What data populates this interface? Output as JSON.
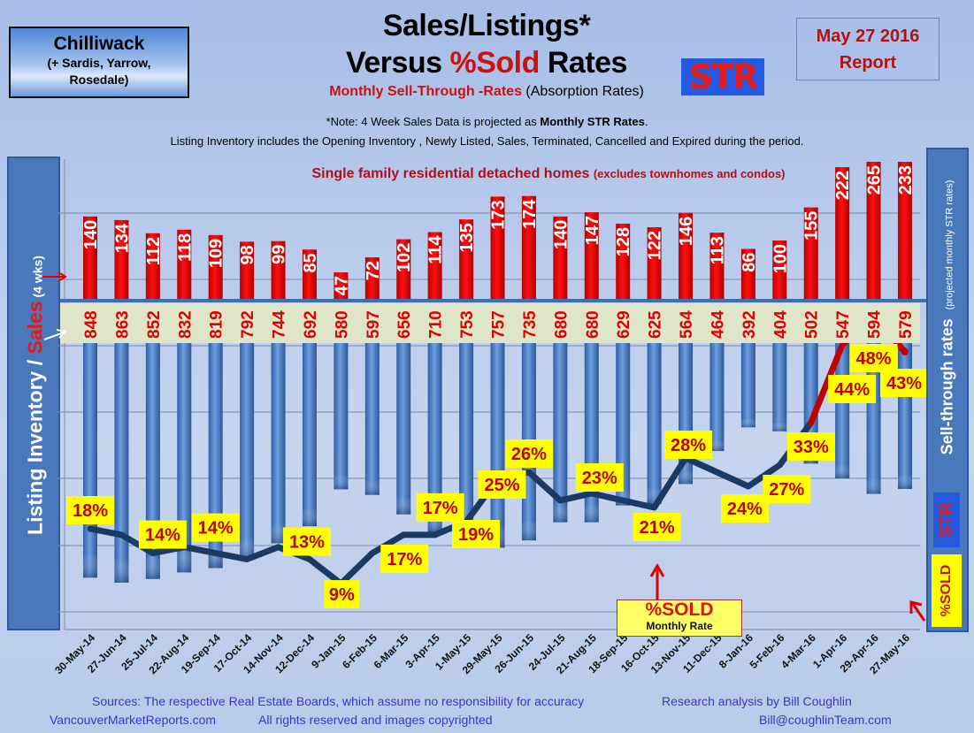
{
  "header": {
    "location": "Chilliwack",
    "location_sub1": "(+ Sardis, Yarrow,",
    "location_sub2": "Rosedale)",
    "title_line1": "Sales/Listings*",
    "title_line2_a": "Versus ",
    "title_line2_b": "%Sold",
    "title_line2_c": " Rates",
    "subtitle_red": "Monthly Sell-Through -Rates",
    "subtitle_rest": " (Absorption Rates)",
    "str_badge": "STR",
    "date_line1": "May 27 2016",
    "date_line2": "Report",
    "note1_a": "*Note: 4 Week Sales Data is projected as ",
    "note1_b": "Monthly STR Rates",
    "note1_c": ".",
    "note2": "Listing Inventory includes the Opening Inventory , Newly Listed, Sales, Terminated,  Cancelled and Expired during the period."
  },
  "left_axis": {
    "a": "Listing Inventory / ",
    "b": "Sales",
    "c": " (4  wks)"
  },
  "right_axis": {
    "label": "Sell-through rates",
    "sub": "(projected monthly STR rates)",
    "str": "STR",
    "sold": "%SOLD"
  },
  "annotation": {
    "sold": "%SOLD",
    "monthly": "Monthly Rate",
    "homes": "Single family residential detached homes",
    "homes_sub": "(excludes townhomes and condos)"
  },
  "footer": {
    "sources": "Sources:  The respective Real Estate Boards, which assume no responsibility for accuracy",
    "research": "Research analysis  by Bill Coughlin",
    "site": "VancouverMarketReports.com",
    "rights": "All rights reserved and  images copyrighted",
    "email": "Bill@coughlinTeam.com"
  },
  "colors": {
    "sales": "#ee0000",
    "listings": "#4a7fc8",
    "line": "#1b3a63",
    "line_recent": "#c00000",
    "band": "#dfe6c8",
    "label_bg": "#ffff00",
    "label_text": "#c00000"
  },
  "chart_data": {
    "type": "bar+line",
    "categories": [
      "30-May-14",
      "27-Jun-14",
      "25-Jul-14",
      "22-Aug-14",
      "19-Sep-14",
      "17-Oct-14",
      "14-Nov-14",
      "12-Dec-14",
      "9-Jan-15",
      "6-Feb-15",
      "6-Mar-15",
      "3-Apr-15",
      "1-May-15",
      "29-May-15",
      "26-Jun-15",
      "24-Jul-15",
      "21-Aug-15",
      "18-Sep-15",
      "16-Oct-15",
      "13-Nov-15",
      "11-Dec-15",
      "8-Jan-16",
      "5-Feb-16",
      "4-Mar-16",
      "1-Apr-16",
      "29-Apr-16",
      "27-May-16"
    ],
    "series": [
      {
        "name": "Sales",
        "type": "bar",
        "values": [
          140,
          134,
          112,
          118,
          109,
          98,
          99,
          85,
          47,
          72,
          102,
          114,
          135,
          173,
          174,
          140,
          147,
          128,
          122,
          146,
          113,
          86,
          100,
          155,
          222,
          265,
          233
        ]
      },
      {
        "name": "Listing Inventory",
        "type": "bar",
        "values": [
          848,
          863,
          852,
          832,
          819,
          792,
          744,
          692,
          580,
          597,
          656,
          710,
          753,
          757,
          735,
          680,
          680,
          629,
          625,
          564,
          464,
          392,
          404,
          502,
          547,
          594,
          579
        ]
      },
      {
        "name": "%SOLD",
        "type": "line",
        "unit": "%",
        "values": [
          18,
          17,
          14,
          15,
          14,
          13,
          15,
          13,
          9,
          14,
          17,
          17,
          19,
          25,
          26,
          22,
          23,
          22,
          21,
          28,
          26,
          24,
          27,
          33,
          44,
          48,
          43
        ]
      }
    ],
    "sold_labels": [
      "18%",
      null,
      "14%",
      null,
      "14%",
      null,
      null,
      "13%",
      "9%",
      null,
      "17%",
      "17%",
      "19%",
      "25%",
      "26%",
      null,
      "23%",
      null,
      "21%",
      "28%",
      null,
      "24%",
      "27%",
      "33%",
      "44%",
      "48%",
      "43%"
    ],
    "grid": true
  }
}
